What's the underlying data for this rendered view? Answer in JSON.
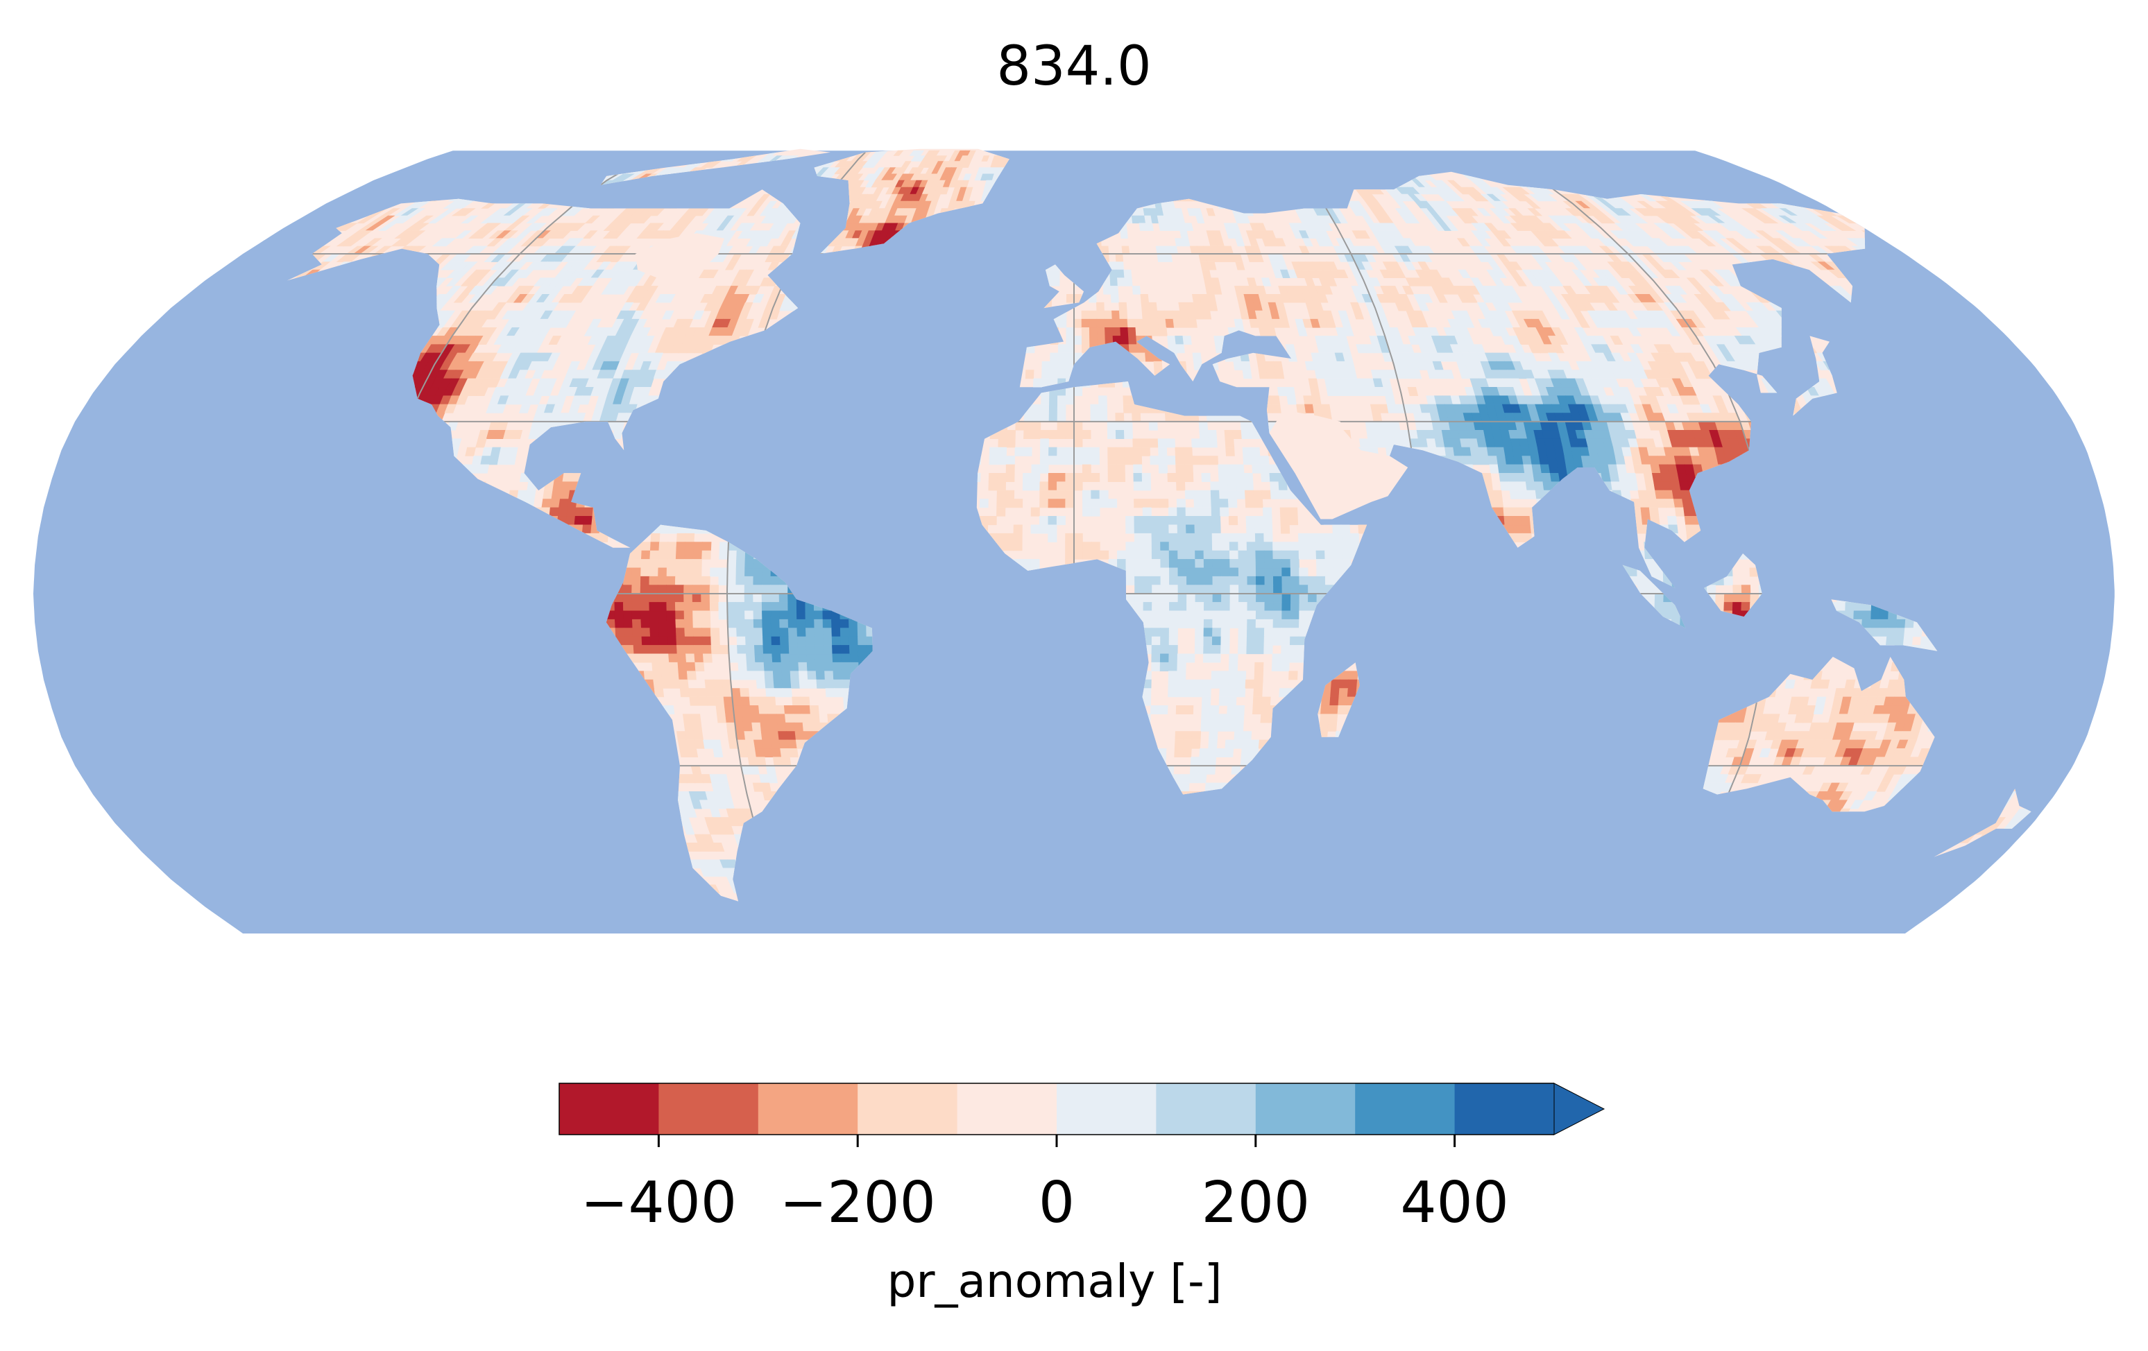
{
  "title": "834.0",
  "colors": {
    "ocean": "#97b5e0",
    "graticule": "#9a9a9a",
    "bins": [
      "#b2182b",
      "#d6604d",
      "#f4a582",
      "#fddbc7",
      "#fde9e2",
      "#e7eef5",
      "#bcd8ea",
      "#82b9d9",
      "#4393c3",
      "#2166ac"
    ]
  },
  "colorbar": {
    "label": "pr_anomaly [-]",
    "bounds": [
      -500,
      -400,
      -300,
      -200,
      -100,
      0,
      100,
      200,
      300,
      400,
      500
    ],
    "extend": "max",
    "ticks": [
      -400,
      -200,
      0,
      200,
      400
    ],
    "tick_labels": [
      "−400",
      "−200",
      "0",
      "200",
      "400"
    ]
  },
  "map": {
    "projection": "Robinson",
    "graticule_longitudes": [
      -120,
      -60,
      0,
      60,
      120
    ],
    "graticule_latitudes": [
      -30,
      0,
      30,
      60
    ]
  }
}
